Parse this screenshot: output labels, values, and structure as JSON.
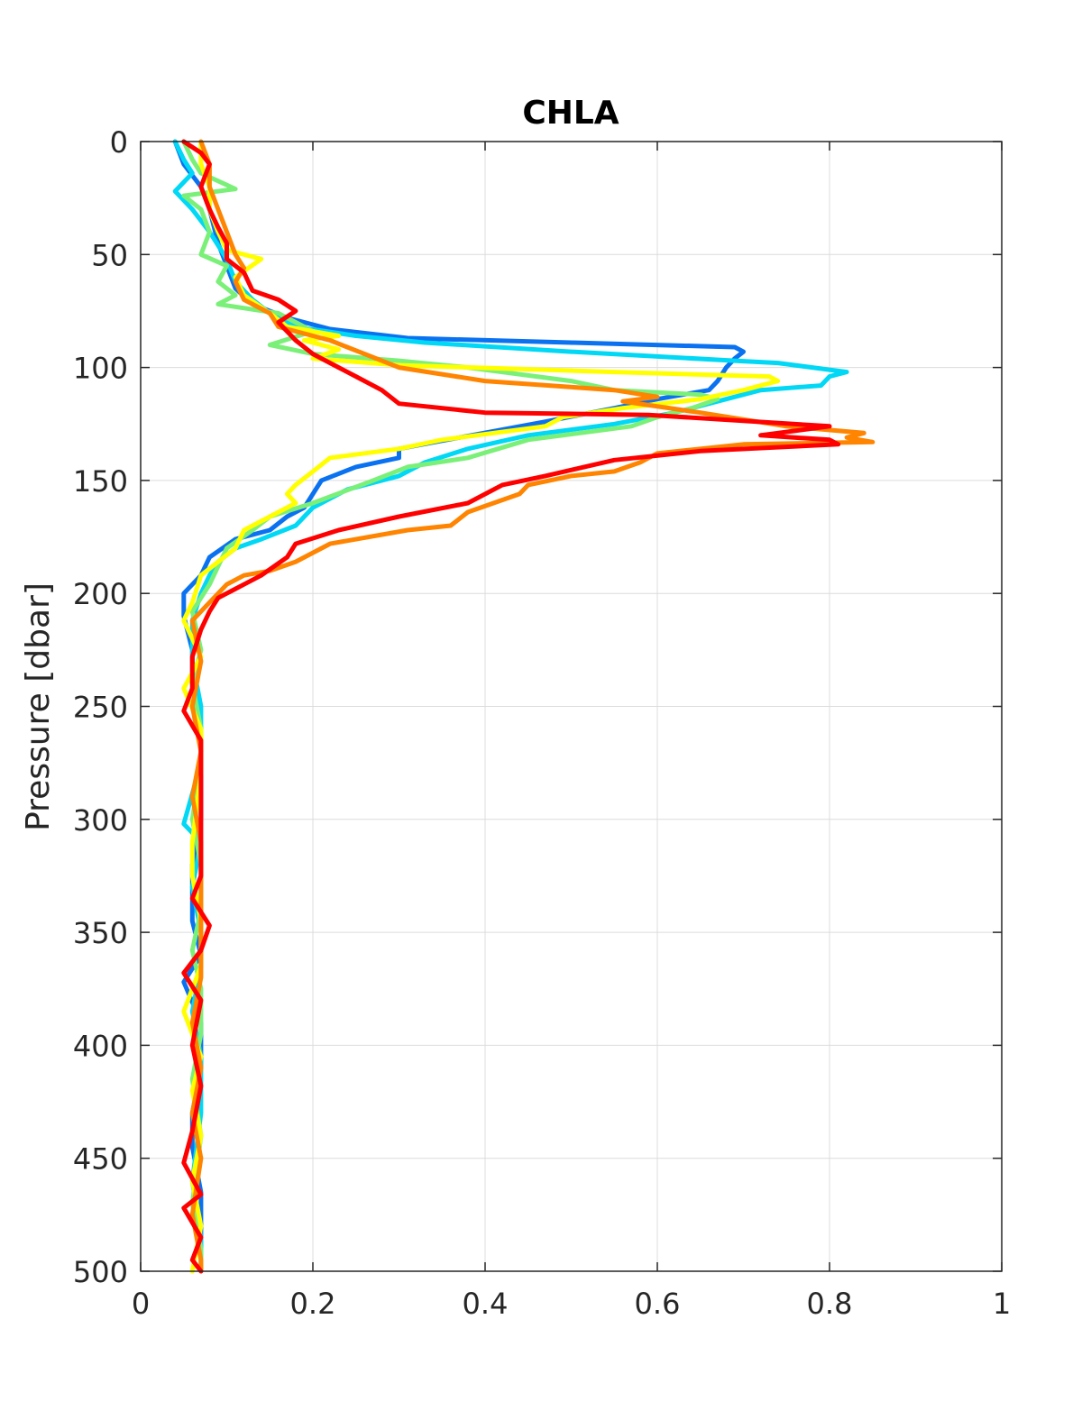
{
  "chart_data": {
    "type": "line",
    "title": "CHLA",
    "xlabel": "",
    "ylabel": "Pressure [dbar]",
    "xlim": [
      0,
      1
    ],
    "ylim": [
      0,
      500
    ],
    "y_reversed": true,
    "grid": true,
    "legend": "none",
    "x_ticks": [
      "0",
      "0.2",
      "0.4",
      "0.6",
      "0.8",
      "1"
    ],
    "y_ticks": [
      "0",
      "50",
      "100",
      "150",
      "200",
      "250",
      "300",
      "350",
      "400",
      "450",
      "500"
    ],
    "series": [
      {
        "color": "#0a72f0",
        "points": [
          [
            0.04,
            0
          ],
          [
            0.05,
            10
          ],
          [
            0.07,
            20
          ],
          [
            0.08,
            30
          ],
          [
            0.09,
            45
          ],
          [
            0.1,
            55
          ],
          [
            0.11,
            65
          ],
          [
            0.13,
            72
          ],
          [
            0.17,
            78
          ],
          [
            0.22,
            83
          ],
          [
            0.31,
            87
          ],
          [
            0.5,
            89
          ],
          [
            0.69,
            91
          ],
          [
            0.7,
            93
          ],
          [
            0.69,
            96
          ],
          [
            0.68,
            100
          ],
          [
            0.67,
            106
          ],
          [
            0.66,
            110
          ],
          [
            0.6,
            114
          ],
          [
            0.55,
            118
          ],
          [
            0.47,
            124
          ],
          [
            0.37,
            131
          ],
          [
            0.3,
            136
          ],
          [
            0.3,
            140
          ],
          [
            0.25,
            144
          ],
          [
            0.21,
            150
          ],
          [
            0.2,
            156
          ],
          [
            0.19,
            162
          ],
          [
            0.17,
            166
          ],
          [
            0.15,
            172
          ],
          [
            0.11,
            176
          ],
          [
            0.08,
            184
          ],
          [
            0.07,
            192
          ],
          [
            0.05,
            200
          ],
          [
            0.05,
            210
          ],
          [
            0.06,
            225
          ],
          [
            0.06,
            240
          ],
          [
            0.07,
            260
          ],
          [
            0.07,
            280
          ],
          [
            0.07,
            300
          ],
          [
            0.06,
            320
          ],
          [
            0.06,
            345
          ],
          [
            0.07,
            360
          ],
          [
            0.05,
            372
          ],
          [
            0.07,
            390
          ],
          [
            0.07,
            410
          ],
          [
            0.06,
            430
          ],
          [
            0.06,
            445
          ],
          [
            0.07,
            465
          ],
          [
            0.07,
            480
          ],
          [
            0.07,
            500
          ]
        ]
      },
      {
        "color": "#00d8f5",
        "points": [
          [
            0.04,
            0
          ],
          [
            0.05,
            8
          ],
          [
            0.06,
            14
          ],
          [
            0.04,
            22
          ],
          [
            0.06,
            30
          ],
          [
            0.08,
            40
          ],
          [
            0.1,
            52
          ],
          [
            0.11,
            62
          ],
          [
            0.13,
            70
          ],
          [
            0.15,
            76
          ],
          [
            0.18,
            82
          ],
          [
            0.25,
            86
          ],
          [
            0.33,
            89
          ],
          [
            0.5,
            93
          ],
          [
            0.69,
            97
          ],
          [
            0.74,
            98
          ],
          [
            0.82,
            102
          ],
          [
            0.8,
            104
          ],
          [
            0.79,
            108
          ],
          [
            0.72,
            110
          ],
          [
            0.68,
            114
          ],
          [
            0.62,
            120
          ],
          [
            0.55,
            125
          ],
          [
            0.45,
            130
          ],
          [
            0.38,
            136
          ],
          [
            0.33,
            142
          ],
          [
            0.3,
            148
          ],
          [
            0.24,
            154
          ],
          [
            0.2,
            162
          ],
          [
            0.18,
            170
          ],
          [
            0.14,
            176
          ],
          [
            0.11,
            180
          ],
          [
            0.09,
            186
          ],
          [
            0.08,
            192
          ],
          [
            0.07,
            200
          ],
          [
            0.06,
            212
          ],
          [
            0.06,
            230
          ],
          [
            0.07,
            250
          ],
          [
            0.07,
            275
          ],
          [
            0.05,
            302
          ],
          [
            0.07,
            310
          ],
          [
            0.06,
            330
          ],
          [
            0.07,
            350
          ],
          [
            0.07,
            365
          ],
          [
            0.06,
            385
          ],
          [
            0.07,
            405
          ],
          [
            0.07,
            430
          ],
          [
            0.06,
            460
          ],
          [
            0.07,
            485
          ],
          [
            0.07,
            500
          ]
        ]
      },
      {
        "color": "#7af078",
        "points": [
          [
            0.05,
            0
          ],
          [
            0.06,
            8
          ],
          [
            0.07,
            14
          ],
          [
            0.11,
            21
          ],
          [
            0.05,
            24
          ],
          [
            0.07,
            30
          ],
          [
            0.08,
            40
          ],
          [
            0.07,
            50
          ],
          [
            0.1,
            55
          ],
          [
            0.09,
            62
          ],
          [
            0.11,
            68
          ],
          [
            0.09,
            72
          ],
          [
            0.16,
            76
          ],
          [
            0.2,
            84
          ],
          [
            0.15,
            90
          ],
          [
            0.2,
            94
          ],
          [
            0.3,
            97
          ],
          [
            0.38,
            100
          ],
          [
            0.5,
            106
          ],
          [
            0.55,
            110
          ],
          [
            0.65,
            112
          ],
          [
            0.67,
            114
          ],
          [
            0.64,
            118
          ],
          [
            0.6,
            122
          ],
          [
            0.57,
            126
          ],
          [
            0.45,
            132
          ],
          [
            0.38,
            140
          ],
          [
            0.31,
            144
          ],
          [
            0.27,
            150
          ],
          [
            0.2,
            160
          ],
          [
            0.15,
            166
          ],
          [
            0.13,
            172
          ],
          [
            0.1,
            180
          ],
          [
            0.09,
            188
          ],
          [
            0.08,
            196
          ],
          [
            0.06,
            208
          ],
          [
            0.07,
            225
          ],
          [
            0.06,
            240
          ],
          [
            0.07,
            260
          ],
          [
            0.07,
            275
          ],
          [
            0.06,
            300
          ],
          [
            0.07,
            320
          ],
          [
            0.07,
            340
          ],
          [
            0.06,
            358
          ],
          [
            0.07,
            375
          ],
          [
            0.07,
            395
          ],
          [
            0.06,
            415
          ],
          [
            0.07,
            440
          ],
          [
            0.06,
            470
          ],
          [
            0.07,
            490
          ],
          [
            0.07,
            500
          ]
        ]
      },
      {
        "color": "#ffff00",
        "points": [
          [
            0.07,
            0
          ],
          [
            0.07,
            10
          ],
          [
            0.08,
            20
          ],
          [
            0.08,
            30
          ],
          [
            0.09,
            40
          ],
          [
            0.1,
            48
          ],
          [
            0.14,
            52
          ],
          [
            0.11,
            60
          ],
          [
            0.12,
            68
          ],
          [
            0.15,
            76
          ],
          [
            0.17,
            82
          ],
          [
            0.23,
            86
          ],
          [
            0.19,
            88
          ],
          [
            0.23,
            92
          ],
          [
            0.2,
            96
          ],
          [
            0.3,
            99
          ],
          [
            0.55,
            102
          ],
          [
            0.73,
            104
          ],
          [
            0.74,
            106
          ],
          [
            0.7,
            110
          ],
          [
            0.65,
            114
          ],
          [
            0.56,
            118
          ],
          [
            0.49,
            122
          ],
          [
            0.47,
            126
          ],
          [
            0.35,
            132
          ],
          [
            0.3,
            136
          ],
          [
            0.22,
            140
          ],
          [
            0.2,
            146
          ],
          [
            0.18,
            152
          ],
          [
            0.17,
            156
          ],
          [
            0.18,
            160
          ],
          [
            0.15,
            166
          ],
          [
            0.12,
            172
          ],
          [
            0.11,
            180
          ],
          [
            0.09,
            186
          ],
          [
            0.07,
            192
          ],
          [
            0.06,
            204
          ],
          [
            0.05,
            212
          ],
          [
            0.07,
            228
          ],
          [
            0.05,
            242
          ],
          [
            0.07,
            260
          ],
          [
            0.07,
            280
          ],
          [
            0.06,
            310
          ],
          [
            0.06,
            325
          ],
          [
            0.07,
            345
          ],
          [
            0.07,
            365
          ],
          [
            0.05,
            385
          ],
          [
            0.07,
            405
          ],
          [
            0.06,
            420
          ],
          [
            0.07,
            440
          ],
          [
            0.06,
            460
          ],
          [
            0.07,
            480
          ],
          [
            0.06,
            500
          ]
        ]
      },
      {
        "color": "#ff8400",
        "points": [
          [
            0.07,
            0
          ],
          [
            0.08,
            10
          ],
          [
            0.08,
            20
          ],
          [
            0.09,
            30
          ],
          [
            0.1,
            40
          ],
          [
            0.11,
            50
          ],
          [
            0.12,
            56
          ],
          [
            0.11,
            62
          ],
          [
            0.12,
            70
          ],
          [
            0.15,
            76
          ],
          [
            0.16,
            82
          ],
          [
            0.22,
            88
          ],
          [
            0.26,
            94
          ],
          [
            0.3,
            100
          ],
          [
            0.4,
            106
          ],
          [
            0.55,
            110
          ],
          [
            0.6,
            113
          ],
          [
            0.56,
            115
          ],
          [
            0.65,
            120
          ],
          [
            0.75,
            126
          ],
          [
            0.84,
            129
          ],
          [
            0.82,
            131
          ],
          [
            0.85,
            133
          ],
          [
            0.7,
            134
          ],
          [
            0.6,
            138
          ],
          [
            0.58,
            142
          ],
          [
            0.55,
            146
          ],
          [
            0.5,
            148
          ],
          [
            0.45,
            152
          ],
          [
            0.44,
            156
          ],
          [
            0.38,
            164
          ],
          [
            0.36,
            170
          ],
          [
            0.31,
            172
          ],
          [
            0.22,
            178
          ],
          [
            0.18,
            186
          ],
          [
            0.15,
            190
          ],
          [
            0.12,
            192
          ],
          [
            0.1,
            196
          ],
          [
            0.08,
            204
          ],
          [
            0.06,
            212
          ],
          [
            0.07,
            230
          ],
          [
            0.06,
            250
          ],
          [
            0.07,
            270
          ],
          [
            0.06,
            290
          ],
          [
            0.07,
            310
          ],
          [
            0.07,
            330
          ],
          [
            0.07,
            350
          ],
          [
            0.07,
            370
          ],
          [
            0.06,
            390
          ],
          [
            0.07,
            410
          ],
          [
            0.06,
            430
          ],
          [
            0.07,
            450
          ],
          [
            0.06,
            475
          ],
          [
            0.07,
            495
          ],
          [
            0.07,
            500
          ]
        ]
      },
      {
        "color": "#ff0000",
        "points": [
          [
            0.05,
            0
          ],
          [
            0.07,
            5
          ],
          [
            0.08,
            10
          ],
          [
            0.07,
            20
          ],
          [
            0.08,
            30
          ],
          [
            0.09,
            38
          ],
          [
            0.1,
            45
          ],
          [
            0.1,
            52
          ],
          [
            0.12,
            58
          ],
          [
            0.13,
            66
          ],
          [
            0.16,
            70
          ],
          [
            0.18,
            75
          ],
          [
            0.16,
            80
          ],
          [
            0.18,
            88
          ],
          [
            0.2,
            94
          ],
          [
            0.23,
            100
          ],
          [
            0.25,
            104
          ],
          [
            0.28,
            110
          ],
          [
            0.3,
            116
          ],
          [
            0.4,
            120
          ],
          [
            0.59,
            121
          ],
          [
            0.8,
            126
          ],
          [
            0.72,
            130
          ],
          [
            0.8,
            132
          ],
          [
            0.81,
            134
          ],
          [
            0.65,
            137
          ],
          [
            0.55,
            141
          ],
          [
            0.47,
            148
          ],
          [
            0.42,
            152
          ],
          [
            0.38,
            160
          ],
          [
            0.3,
            166
          ],
          [
            0.23,
            172
          ],
          [
            0.18,
            178
          ],
          [
            0.17,
            184
          ],
          [
            0.14,
            192
          ],
          [
            0.12,
            196
          ],
          [
            0.09,
            202
          ],
          [
            0.08,
            208
          ],
          [
            0.07,
            216
          ],
          [
            0.06,
            228
          ],
          [
            0.06,
            242
          ],
          [
            0.05,
            252
          ],
          [
            0.07,
            265
          ],
          [
            0.07,
            285
          ],
          [
            0.07,
            305
          ],
          [
            0.07,
            325
          ],
          [
            0.06,
            335
          ],
          [
            0.08,
            347
          ],
          [
            0.07,
            358
          ],
          [
            0.05,
            368
          ],
          [
            0.07,
            380
          ],
          [
            0.06,
            400
          ],
          [
            0.07,
            418
          ],
          [
            0.06,
            438
          ],
          [
            0.05,
            452
          ],
          [
            0.07,
            466
          ],
          [
            0.05,
            472
          ],
          [
            0.07,
            485
          ],
          [
            0.06,
            495
          ],
          [
            0.07,
            500
          ]
        ]
      }
    ]
  }
}
